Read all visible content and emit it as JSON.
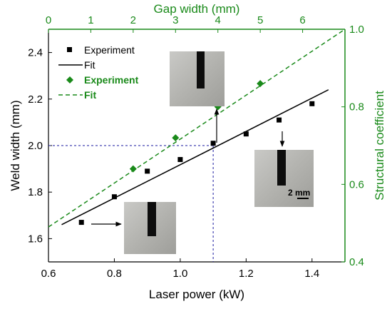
{
  "chart_data": {
    "type": "scatter",
    "axes": {
      "bottom": {
        "label": "Laser power (kW)",
        "range": [
          0.6,
          1.5
        ],
        "ticks": [
          0.6,
          0.8,
          1.0,
          1.2,
          1.4
        ],
        "tick_labels": [
          "0.6",
          "0.8",
          "1.0",
          "1.2",
          "1.4"
        ],
        "color": "#000000"
      },
      "left": {
        "label": "Weld width (mm)",
        "range": [
          1.5,
          2.5
        ],
        "ticks": [
          1.6,
          1.8,
          2.0,
          2.2,
          2.4
        ],
        "tick_labels": [
          "1.6",
          "1.8",
          "2.0",
          "2.2",
          "2.4"
        ],
        "color": "#000000"
      },
      "top": {
        "label": "Gap width (mm)",
        "range": [
          0,
          7
        ],
        "ticks": [
          0,
          1,
          2,
          3,
          4,
          5,
          6
        ],
        "tick_labels": [
          "0",
          "1",
          "2",
          "3",
          "4",
          "5",
          "6"
        ],
        "color": "#1a8a1a"
      },
      "right": {
        "label": "Structural coefficient",
        "range": [
          0.4,
          1.0
        ],
        "ticks": [
          0.4,
          0.6,
          0.8,
          1.0
        ],
        "tick_labels": [
          "0.4",
          "0.6",
          "0.8",
          "1.0"
        ],
        "color": "#1a8a1a"
      }
    },
    "series": [
      {
        "name": "Experiment",
        "kind": "points",
        "marker": "square",
        "color": "#000000",
        "x_axis": "bottom",
        "y_axis": "left",
        "x": [
          0.7,
          0.8,
          0.9,
          1.0,
          1.1,
          1.2,
          1.3,
          1.4
        ],
        "y": [
          1.67,
          1.78,
          1.89,
          1.94,
          2.01,
          2.05,
          2.11,
          2.18
        ]
      },
      {
        "name": "Fit",
        "kind": "line",
        "style": "solid",
        "color": "#000000",
        "x_axis": "bottom",
        "y_axis": "left",
        "x": [
          0.64,
          1.45
        ],
        "y": [
          1.66,
          2.24
        ]
      },
      {
        "name": "Experiment",
        "kind": "points",
        "marker": "diamond",
        "color": "#1a8a1a",
        "x_axis": "top",
        "y_axis": "right",
        "x": [
          2.0,
          3.0,
          4.0,
          5.0
        ],
        "y": [
          0.64,
          0.72,
          0.8,
          0.86
        ]
      },
      {
        "name": "Fit",
        "kind": "line",
        "style": "dashed",
        "color": "#1a8a1a",
        "x_axis": "top",
        "y_axis": "right",
        "x": [
          0,
          7
        ],
        "y": [
          0.49,
          1.0
        ]
      }
    ],
    "reference_lines": {
      "color": "#1a1aa0",
      "style": "dashed",
      "x": 1.1,
      "y": 2.0
    },
    "legend": {
      "placement": "top-left",
      "entries": [
        {
          "label": "Experiment",
          "marker": "square",
          "color": "#000000"
        },
        {
          "label": "Fit",
          "marker": "solid-line",
          "color": "#000000"
        },
        {
          "label": "Experiment",
          "marker": "diamond",
          "color": "#1a8a1a"
        },
        {
          "label": "Fit",
          "marker": "dashed-line",
          "color": "#1a8a1a"
        }
      ]
    },
    "insets": [
      {
        "id": "inset-low-power",
        "points_to_x": 0.7,
        "points_to_y": 1.67,
        "scale_label": ""
      },
      {
        "id": "inset-mid-power",
        "points_to_x": 1.1,
        "points_to_y": 2.01,
        "scale_label": ""
      },
      {
        "id": "inset-high-power",
        "points_to_x": 1.3,
        "points_to_y": 2.11,
        "scale_label": "2 mm"
      }
    ],
    "grid": false
  }
}
